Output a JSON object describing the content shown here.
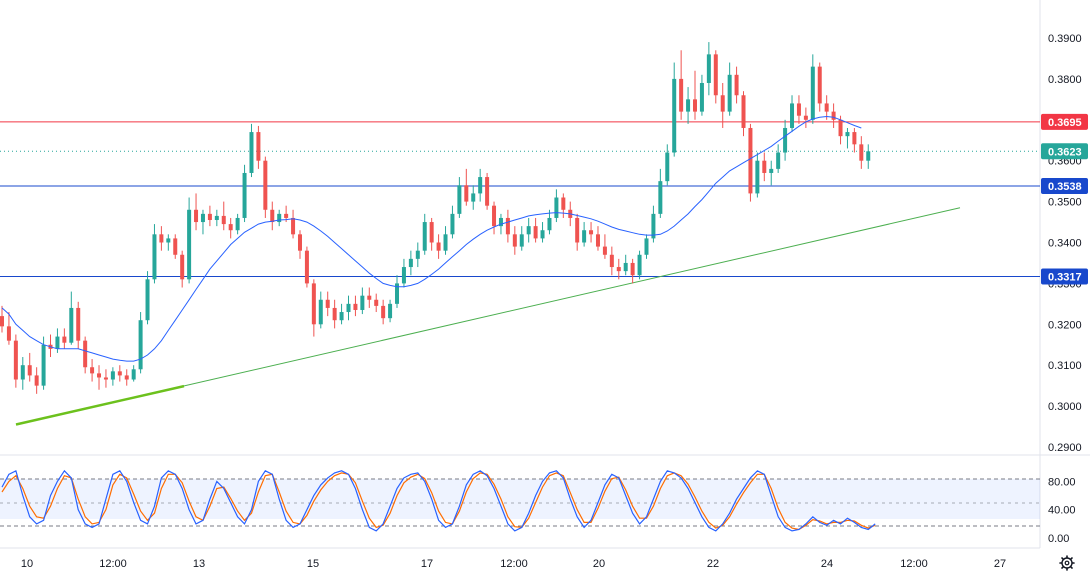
{
  "chart_data": {
    "type": "candlestick",
    "title": "",
    "colors": {
      "up": "#26a69a",
      "down": "#ef5350",
      "ma": "#2962ff",
      "trend": "#4caf50",
      "trend_bold": "#6cc11d",
      "resistance": "#f23645",
      "support": "#1848cc",
      "last_price": "#26a69a",
      "stoch_k": "#2962ff",
      "stoch_d": "#ff6d00"
    },
    "price_axis": {
      "ticks": [
        "0.3900",
        "0.3800",
        "0.3700",
        "0.3600",
        "0.3500",
        "0.3400",
        "0.3300",
        "0.3200",
        "0.3100",
        "0.3000",
        "0.2900"
      ],
      "min": 0.29,
      "max": 0.39
    },
    "time_axis": {
      "ticks": [
        "10",
        "12:00",
        "13",
        "15",
        "17",
        "12:00",
        "20",
        "22",
        "24",
        "12:00",
        "27"
      ]
    },
    "levels": [
      {
        "name": "resistance",
        "value": 0.3695,
        "label": "0.3695"
      },
      {
        "name": "last-price",
        "value": 0.3623,
        "label": "0.3623"
      },
      {
        "name": "support-upper",
        "value": 0.3538,
        "label": "0.3538"
      },
      {
        "name": "support-lower",
        "value": 0.3317,
        "label": "0.3317"
      }
    ],
    "trendline": {
      "start": [
        0.0,
        0.2955
      ],
      "end": [
        62.0,
        0.3485
      ]
    },
    "trendline_bold": {
      "start": [
        0.0,
        0.2955
      ],
      "end": [
        10.8,
        0.3044
      ]
    },
    "candles": [
      [
        0.322,
        0.3245,
        0.318,
        0.3195
      ],
      [
        0.3195,
        0.323,
        0.315,
        0.316
      ],
      [
        0.316,
        0.3175,
        0.3045,
        0.3065
      ],
      [
        0.3065,
        0.312,
        0.304,
        0.31
      ],
      [
        0.31,
        0.313,
        0.306,
        0.3075
      ],
      [
        0.3075,
        0.3095,
        0.303,
        0.305
      ],
      [
        0.305,
        0.317,
        0.304,
        0.315
      ],
      [
        0.315,
        0.3175,
        0.312,
        0.314
      ],
      [
        0.314,
        0.319,
        0.313,
        0.317
      ],
      [
        0.317,
        0.319,
        0.314,
        0.3155
      ],
      [
        0.3155,
        0.328,
        0.315,
        0.324
      ],
      [
        0.324,
        0.3255,
        0.314,
        0.316
      ],
      [
        0.316,
        0.317,
        0.308,
        0.3095
      ],
      [
        0.3095,
        0.3115,
        0.306,
        0.308
      ],
      [
        0.308,
        0.31,
        0.304,
        0.307
      ],
      [
        0.307,
        0.309,
        0.3045,
        0.3065
      ],
      [
        0.3065,
        0.3095,
        0.305,
        0.3085
      ],
      [
        0.3085,
        0.31,
        0.306,
        0.3075
      ],
      [
        0.3075,
        0.309,
        0.305,
        0.3065
      ],
      [
        0.3065,
        0.31,
        0.306,
        0.309
      ],
      [
        0.309,
        0.323,
        0.308,
        0.321
      ],
      [
        0.321,
        0.333,
        0.32,
        0.331
      ],
      [
        0.331,
        0.3445,
        0.33,
        0.342
      ],
      [
        0.342,
        0.344,
        0.338,
        0.34
      ],
      [
        0.34,
        0.342,
        0.338,
        0.341
      ],
      [
        0.341,
        0.342,
        0.336,
        0.337
      ],
      [
        0.337,
        0.338,
        0.329,
        0.331
      ],
      [
        0.331,
        0.351,
        0.33,
        0.348
      ],
      [
        0.348,
        0.352,
        0.343,
        0.345
      ],
      [
        0.345,
        0.348,
        0.342,
        0.347
      ],
      [
        0.347,
        0.349,
        0.344,
        0.3455
      ],
      [
        0.3455,
        0.348,
        0.344,
        0.3465
      ],
      [
        0.3465,
        0.35,
        0.343,
        0.3445
      ],
      [
        0.3445,
        0.346,
        0.341,
        0.343
      ],
      [
        0.343,
        0.347,
        0.342,
        0.346
      ],
      [
        0.346,
        0.359,
        0.345,
        0.357
      ],
      [
        0.357,
        0.369,
        0.356,
        0.367
      ],
      [
        0.367,
        0.3685,
        0.358,
        0.36
      ],
      [
        0.36,
        0.361,
        0.346,
        0.348
      ],
      [
        0.348,
        0.35,
        0.343,
        0.345
      ],
      [
        0.345,
        0.348,
        0.344,
        0.347
      ],
      [
        0.347,
        0.349,
        0.345,
        0.346
      ],
      [
        0.346,
        0.348,
        0.341,
        0.342
      ],
      [
        0.342,
        0.343,
        0.336,
        0.338
      ],
      [
        0.338,
        0.339,
        0.329,
        0.33
      ],
      [
        0.33,
        0.331,
        0.317,
        0.32
      ],
      [
        0.32,
        0.328,
        0.319,
        0.326
      ],
      [
        0.326,
        0.328,
        0.322,
        0.324
      ],
      [
        0.324,
        0.326,
        0.319,
        0.321
      ],
      [
        0.321,
        0.325,
        0.32,
        0.323
      ],
      [
        0.323,
        0.327,
        0.321,
        0.325
      ],
      [
        0.325,
        0.327,
        0.322,
        0.3235
      ],
      [
        0.3235,
        0.329,
        0.3225,
        0.327
      ],
      [
        0.327,
        0.329,
        0.324,
        0.326
      ],
      [
        0.326,
        0.3275,
        0.323,
        0.3245
      ],
      [
        0.3245,
        0.326,
        0.32,
        0.3215
      ],
      [
        0.3215,
        0.326,
        0.3205,
        0.325
      ],
      [
        0.325,
        0.332,
        0.324,
        0.33
      ],
      [
        0.33,
        0.336,
        0.329,
        0.334
      ],
      [
        0.334,
        0.338,
        0.332,
        0.336
      ],
      [
        0.336,
        0.34,
        0.334,
        0.338
      ],
      [
        0.338,
        0.347,
        0.337,
        0.345
      ],
      [
        0.345,
        0.346,
        0.338,
        0.34
      ],
      [
        0.34,
        0.342,
        0.336,
        0.338
      ],
      [
        0.338,
        0.344,
        0.337,
        0.342
      ],
      [
        0.342,
        0.349,
        0.341,
        0.347
      ],
      [
        0.347,
        0.356,
        0.346,
        0.354
      ],
      [
        0.354,
        0.358,
        0.349,
        0.35
      ],
      [
        0.35,
        0.354,
        0.348,
        0.352
      ],
      [
        0.352,
        0.358,
        0.35,
        0.356
      ],
      [
        0.356,
        0.357,
        0.348,
        0.349
      ],
      [
        0.349,
        0.35,
        0.342,
        0.344
      ],
      [
        0.344,
        0.347,
        0.342,
        0.346
      ],
      [
        0.346,
        0.348,
        0.34,
        0.342
      ],
      [
        0.342,
        0.344,
        0.337,
        0.339
      ],
      [
        0.339,
        0.344,
        0.338,
        0.342
      ],
      [
        0.342,
        0.346,
        0.34,
        0.344
      ],
      [
        0.344,
        0.346,
        0.34,
        0.341
      ],
      [
        0.341,
        0.345,
        0.34,
        0.343
      ],
      [
        0.343,
        0.348,
        0.342,
        0.346
      ],
      [
        0.346,
        0.353,
        0.345,
        0.351
      ],
      [
        0.351,
        0.352,
        0.346,
        0.348
      ],
      [
        0.348,
        0.35,
        0.344,
        0.346
      ],
      [
        0.346,
        0.347,
        0.338,
        0.34
      ],
      [
        0.34,
        0.345,
        0.339,
        0.343
      ],
      [
        0.343,
        0.345,
        0.34,
        0.342
      ],
      [
        0.342,
        0.344,
        0.338,
        0.339
      ],
      [
        0.339,
        0.342,
        0.336,
        0.337
      ],
      [
        0.337,
        0.339,
        0.332,
        0.334
      ],
      [
        0.334,
        0.336,
        0.331,
        0.333
      ],
      [
        0.333,
        0.337,
        0.332,
        0.335
      ],
      [
        0.335,
        0.336,
        0.33,
        0.332
      ],
      [
        0.332,
        0.338,
        0.331,
        0.337
      ],
      [
        0.337,
        0.342,
        0.336,
        0.341
      ],
      [
        0.341,
        0.349,
        0.34,
        0.347
      ],
      [
        0.347,
        0.358,
        0.346,
        0.355
      ],
      [
        0.355,
        0.364,
        0.354,
        0.362
      ],
      [
        0.362,
        0.384,
        0.361,
        0.38
      ],
      [
        0.38,
        0.387,
        0.37,
        0.372
      ],
      [
        0.372,
        0.378,
        0.369,
        0.375
      ],
      [
        0.375,
        0.382,
        0.37,
        0.372
      ],
      [
        0.372,
        0.381,
        0.371,
        0.379
      ],
      [
        0.379,
        0.389,
        0.376,
        0.386
      ],
      [
        0.386,
        0.387,
        0.374,
        0.376
      ],
      [
        0.376,
        0.379,
        0.368,
        0.372
      ],
      [
        0.372,
        0.384,
        0.371,
        0.381
      ],
      [
        0.381,
        0.383,
        0.374,
        0.376
      ],
      [
        0.376,
        0.377,
        0.366,
        0.368
      ],
      [
        0.368,
        0.369,
        0.35,
        0.352
      ],
      [
        0.352,
        0.362,
        0.351,
        0.36
      ],
      [
        0.36,
        0.362,
        0.355,
        0.357
      ],
      [
        0.357,
        0.36,
        0.354,
        0.358
      ],
      [
        0.358,
        0.364,
        0.357,
        0.362
      ],
      [
        0.362,
        0.37,
        0.36,
        0.368
      ],
      [
        0.368,
        0.376,
        0.367,
        0.374
      ],
      [
        0.374,
        0.376,
        0.369,
        0.371
      ],
      [
        0.371,
        0.373,
        0.368,
        0.37
      ],
      [
        0.37,
        0.386,
        0.369,
        0.383
      ],
      [
        0.383,
        0.384,
        0.372,
        0.374
      ],
      [
        0.374,
        0.376,
        0.37,
        0.372
      ],
      [
        0.372,
        0.374,
        0.368,
        0.37
      ],
      [
        0.37,
        0.371,
        0.364,
        0.366
      ],
      [
        0.366,
        0.368,
        0.363,
        0.367
      ],
      [
        0.367,
        0.368,
        0.362,
        0.364
      ],
      [
        0.364,
        0.366,
        0.358,
        0.36
      ],
      [
        0.36,
        0.364,
        0.358,
        0.3623
      ]
    ],
    "ma": [
      0.324,
      0.3225,
      0.32,
      0.3185,
      0.317,
      0.316,
      0.315,
      0.3145,
      0.314,
      0.314,
      0.314,
      0.314,
      0.3135,
      0.313,
      0.3125,
      0.312,
      0.3115,
      0.3112,
      0.311,
      0.311,
      0.3115,
      0.3125,
      0.314,
      0.316,
      0.3185,
      0.321,
      0.3235,
      0.326,
      0.3285,
      0.331,
      0.3335,
      0.3355,
      0.3375,
      0.3395,
      0.341,
      0.3425,
      0.3435,
      0.3445,
      0.345,
      0.3452,
      0.3455,
      0.3456,
      0.3458,
      0.3455,
      0.345,
      0.344,
      0.3428,
      0.3415,
      0.34,
      0.3385,
      0.337,
      0.3355,
      0.334,
      0.3325,
      0.3312,
      0.33,
      0.3295,
      0.3292,
      0.3292,
      0.3295,
      0.33,
      0.331,
      0.3322,
      0.3335,
      0.335,
      0.3365,
      0.338,
      0.3395,
      0.3408,
      0.342,
      0.343,
      0.3438,
      0.3445,
      0.345,
      0.3455,
      0.346,
      0.3465,
      0.3468,
      0.347,
      0.3472,
      0.3473,
      0.3472,
      0.347,
      0.3466,
      0.3462,
      0.3458,
      0.3452,
      0.3445,
      0.3438,
      0.3432,
      0.3428,
      0.3424,
      0.342,
      0.3418,
      0.3418,
      0.342,
      0.3428,
      0.344,
      0.3455,
      0.347,
      0.3488,
      0.3505,
      0.3525,
      0.3545,
      0.356,
      0.3575,
      0.3585,
      0.3595,
      0.3605,
      0.3615,
      0.3625,
      0.3635,
      0.3648,
      0.366,
      0.3672,
      0.3684,
      0.3695,
      0.3702,
      0.3706,
      0.3708,
      0.3706,
      0.37,
      0.3693,
      0.3686,
      0.368
    ],
    "stoch_axis": {
      "ticks": [
        "80.00",
        "40.00",
        "0.00"
      ],
      "min": 0,
      "max": 100,
      "bands": [
        80,
        60,
        25
      ]
    },
    "stoch_k": [
      72,
      90,
      95,
      60,
      30,
      20,
      25,
      60,
      80,
      95,
      85,
      40,
      20,
      15,
      20,
      55,
      90,
      95,
      80,
      50,
      25,
      20,
      45,
      85,
      95,
      90,
      70,
      40,
      20,
      25,
      55,
      80,
      70,
      50,
      30,
      20,
      40,
      80,
      95,
      90,
      55,
      25,
      15,
      20,
      40,
      60,
      75,
      85,
      92,
      95,
      90,
      70,
      40,
      15,
      10,
      20,
      45,
      70,
      85,
      90,
      92,
      80,
      55,
      25,
      15,
      20,
      45,
      75,
      90,
      95,
      88,
      70,
      45,
      20,
      10,
      15,
      35,
      60,
      80,
      92,
      95,
      85,
      55,
      30,
      15,
      25,
      50,
      75,
      90,
      85,
      60,
      35,
      20,
      30,
      55,
      80,
      95,
      92,
      85,
      70,
      50,
      30,
      15,
      10,
      20,
      35,
      55,
      70,
      85,
      95,
      90,
      60,
      30,
      15,
      10,
      12,
      20,
      30,
      22,
      18,
      25,
      20,
      28,
      22,
      15,
      12,
      20
    ],
    "stoch_d": [
      65,
      80,
      88,
      70,
      45,
      30,
      28,
      45,
      70,
      88,
      85,
      55,
      30,
      20,
      22,
      40,
      75,
      90,
      85,
      62,
      38,
      25,
      35,
      70,
      90,
      90,
      78,
      52,
      30,
      25,
      45,
      70,
      72,
      56,
      38,
      25,
      35,
      65,
      88,
      90,
      65,
      38,
      22,
      20,
      32,
      52,
      68,
      80,
      88,
      92,
      90,
      78,
      52,
      28,
      15,
      18,
      35,
      60,
      78,
      86,
      90,
      84,
      64,
      38,
      22,
      20,
      38,
      65,
      84,
      92,
      90,
      76,
      55,
      30,
      16,
      15,
      28,
      50,
      72,
      88,
      92,
      88,
      64,
      40,
      22,
      22,
      42,
      66,
      84,
      86,
      68,
      45,
      28,
      28,
      45,
      70,
      88,
      92,
      88,
      76,
      58,
      38,
      22,
      14,
      18,
      30,
      48,
      64,
      78,
      90,
      90,
      70,
      42,
      22,
      14,
      12,
      18,
      26,
      24,
      20,
      22,
      22,
      25,
      24,
      18,
      14,
      18
    ]
  }
}
